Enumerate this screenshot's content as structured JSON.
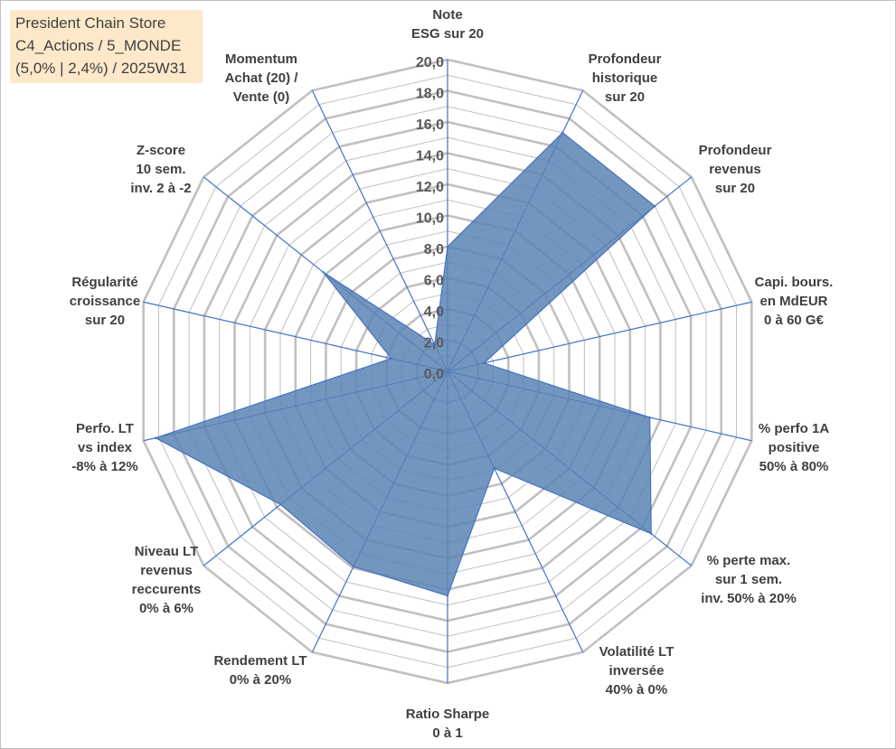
{
  "title_box": {
    "line1": "President Chain Store",
    "line2": "C4_Actions / 5_MONDE",
    "line3": "(5,0% | 2,4%) / 2025W31",
    "background": "#fde9c9"
  },
  "chart_data": {
    "type": "radar",
    "title": "President Chain Store",
    "r_range": [
      0,
      20
    ],
    "r_ticks": [
      "0,0",
      "2,0",
      "4,0",
      "6,0",
      "8,0",
      "10,0",
      "12,0",
      "14,0",
      "16,0",
      "18,0",
      "20,0"
    ],
    "grid": true,
    "colors": {
      "fill": "#5b84b4",
      "stroke": "#4472c4",
      "grid": "#c0c0c0",
      "spoke": "#4472c4"
    },
    "axes": [
      {
        "lines": [
          "Note",
          "ESG sur 20"
        ]
      },
      {
        "lines": [
          "Profondeur",
          "historique",
          "sur 20"
        ]
      },
      {
        "lines": [
          "Profondeur",
          "revenus",
          "sur 20"
        ]
      },
      {
        "lines": [
          "Capi. bours.",
          "en MdEUR",
          "0 à 60 G€"
        ]
      },
      {
        "lines": [
          "% perfo 1A",
          "positive",
          "50% à 80%"
        ]
      },
      {
        "lines": [
          "% perte max.",
          "sur 1 sem.",
          "inv. 50% à 20%"
        ]
      },
      {
        "lines": [
          "Volatilité LT",
          "inversée",
          "40% à 0%"
        ]
      },
      {
        "lines": [
          "Ratio Sharpe",
          "0 à 1"
        ]
      },
      {
        "lines": [
          "Rendement LT",
          "0% à 20%"
        ]
      },
      {
        "lines": [
          "Niveau LT",
          "revenus",
          "reccurents",
          "0% à 6%"
        ]
      },
      {
        "lines": [
          "Perfo. LT",
          "vs index",
          "-8% à 12%"
        ]
      },
      {
        "lines": [
          "Régularité",
          "croissance",
          "sur 20"
        ]
      },
      {
        "lines": [
          "Z-score",
          "10 sem.",
          "inv. 2 à -2"
        ]
      },
      {
        "lines": [
          "Momentum",
          "Achat (20) /",
          "Vente (0)"
        ]
      }
    ],
    "series": [
      {
        "values": [
          8.0,
          17.0,
          17.0,
          2.4,
          13.3,
          16.7,
          6.9,
          14.4,
          13.9,
          13.7,
          19.2,
          3.7,
          10.2,
          1.9
        ]
      }
    ]
  }
}
